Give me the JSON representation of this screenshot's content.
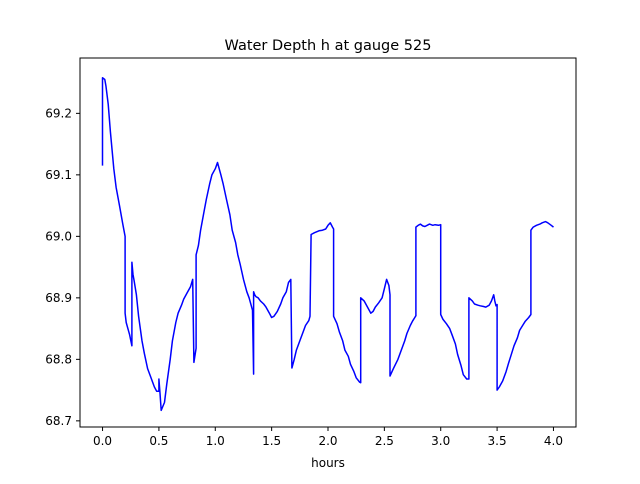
{
  "chart_data": {
    "type": "line",
    "title": "Water Depth h at gauge 525",
    "xlabel": "hours",
    "ylabel": "",
    "xlim": [
      -0.2,
      4.2
    ],
    "ylim": [
      68.69,
      69.29
    ],
    "xticks": [
      0.0,
      0.5,
      1.0,
      1.5,
      2.0,
      2.5,
      3.0,
      3.5,
      4.0
    ],
    "xtick_labels": [
      "0.0",
      "0.5",
      "1.0",
      "1.5",
      "2.0",
      "2.5",
      "3.0",
      "3.5",
      "4.0"
    ],
    "yticks": [
      68.7,
      68.8,
      68.9,
      69.0,
      69.1,
      69.2
    ],
    "ytick_labels": [
      "68.7",
      "68.8",
      "68.9",
      "69.0",
      "69.1",
      "69.2"
    ],
    "grid": false,
    "legend": "none",
    "series": [
      {
        "color": "#0000ff",
        "x": [
          0.0,
          0.0,
          0.02,
          0.03,
          0.05,
          0.07,
          0.1,
          0.12,
          0.15,
          0.18,
          0.2,
          0.2,
          0.21,
          0.24,
          0.26,
          0.26,
          0.27,
          0.28,
          0.3,
          0.32,
          0.35,
          0.37,
          0.4,
          0.43,
          0.46,
          0.48,
          0.5,
          0.5,
          0.51,
          0.52,
          0.55,
          0.57,
          0.6,
          0.62,
          0.65,
          0.67,
          0.7,
          0.72,
          0.75,
          0.78,
          0.8,
          0.81,
          0.83,
          0.83,
          0.85,
          0.87,
          0.9,
          0.92,
          0.95,
          0.97,
          1.0,
          1.02,
          1.05,
          1.07,
          1.1,
          1.13,
          1.15,
          1.18,
          1.2,
          1.22,
          1.25,
          1.28,
          1.3,
          1.33,
          1.34,
          1.34,
          1.35,
          1.36,
          1.38,
          1.4,
          1.43,
          1.45,
          1.48,
          1.5,
          1.52,
          1.55,
          1.58,
          1.6,
          1.63,
          1.65,
          1.67,
          1.68,
          1.7,
          1.72,
          1.75,
          1.78,
          1.8,
          1.83,
          1.84,
          1.85,
          1.88,
          1.92,
          1.95,
          1.98,
          2.0,
          2.02,
          2.04,
          2.05,
          2.05,
          2.08,
          2.1,
          2.13,
          2.15,
          2.18,
          2.2,
          2.23,
          2.25,
          2.28,
          2.29,
          2.29,
          2.32,
          2.35,
          2.38,
          2.4,
          2.42,
          2.45,
          2.48,
          2.5,
          2.52,
          2.54,
          2.55,
          2.55,
          2.58,
          2.62,
          2.65,
          2.68,
          2.7,
          2.73,
          2.75,
          2.77,
          2.78,
          2.78,
          2.8,
          2.82,
          2.84,
          2.86,
          2.88,
          2.9,
          2.93,
          2.95,
          2.98,
          3.0,
          3.0,
          3.02,
          3.05,
          3.08,
          3.1,
          3.13,
          3.15,
          3.18,
          3.2,
          3.23,
          3.25,
          3.25,
          3.28,
          3.3,
          3.33,
          3.35,
          3.38,
          3.4,
          3.43,
          3.45,
          3.47,
          3.48,
          3.49,
          3.5,
          3.5,
          3.52,
          3.55,
          3.58,
          3.6,
          3.63,
          3.65,
          3.68,
          3.7,
          3.73,
          3.75,
          3.78,
          3.8,
          3.8,
          3.82,
          3.85,
          3.88,
          3.9,
          3.93,
          3.95,
          3.98,
          4.0
        ],
        "y": [
          69.115,
          69.258,
          69.255,
          69.245,
          69.215,
          69.17,
          69.11,
          69.08,
          69.05,
          69.02,
          69.0,
          68.875,
          68.86,
          68.84,
          68.822,
          68.958,
          68.938,
          68.928,
          68.905,
          68.87,
          68.83,
          68.81,
          68.785,
          68.77,
          68.755,
          68.748,
          68.748,
          68.768,
          68.745,
          68.717,
          68.73,
          68.76,
          68.8,
          68.83,
          68.86,
          68.875,
          68.888,
          68.898,
          68.908,
          68.918,
          68.93,
          68.795,
          68.818,
          68.97,
          68.985,
          69.01,
          69.04,
          69.06,
          69.085,
          69.1,
          69.11,
          69.12,
          69.1,
          69.085,
          69.06,
          69.035,
          69.01,
          68.99,
          68.97,
          68.955,
          68.93,
          68.91,
          68.9,
          68.88,
          68.776,
          68.91,
          68.905,
          68.902,
          68.9,
          68.895,
          68.89,
          68.885,
          68.875,
          68.868,
          68.87,
          68.878,
          68.89,
          68.9,
          68.91,
          68.925,
          68.93,
          68.786,
          68.8,
          68.815,
          68.83,
          68.845,
          68.855,
          68.863,
          68.87,
          69.003,
          69.006,
          69.009,
          69.01,
          69.012,
          69.018,
          69.022,
          69.015,
          69.012,
          68.87,
          68.858,
          68.845,
          68.83,
          68.815,
          68.805,
          68.792,
          68.78,
          68.77,
          68.763,
          68.762,
          68.9,
          68.895,
          68.885,
          68.875,
          68.878,
          68.885,
          68.892,
          68.9,
          68.915,
          68.93,
          68.92,
          68.905,
          68.773,
          68.785,
          68.8,
          68.815,
          68.83,
          68.842,
          68.855,
          68.862,
          68.868,
          68.871,
          69.015,
          69.018,
          69.02,
          69.017,
          69.016,
          69.018,
          69.02,
          69.018,
          69.019,
          69.018,
          69.019,
          68.873,
          68.865,
          68.858,
          68.85,
          68.84,
          68.825,
          68.808,
          68.79,
          68.775,
          68.768,
          68.768,
          68.9,
          68.895,
          68.89,
          68.888,
          68.887,
          68.886,
          68.885,
          68.888,
          68.895,
          68.905,
          68.895,
          68.887,
          68.889,
          68.75,
          68.755,
          68.765,
          68.78,
          68.793,
          68.81,
          68.822,
          68.835,
          68.847,
          68.856,
          68.862,
          68.868,
          68.873,
          69.01,
          69.015,
          69.018,
          69.02,
          69.022,
          69.024,
          69.022,
          69.018,
          69.015
        ]
      }
    ]
  }
}
